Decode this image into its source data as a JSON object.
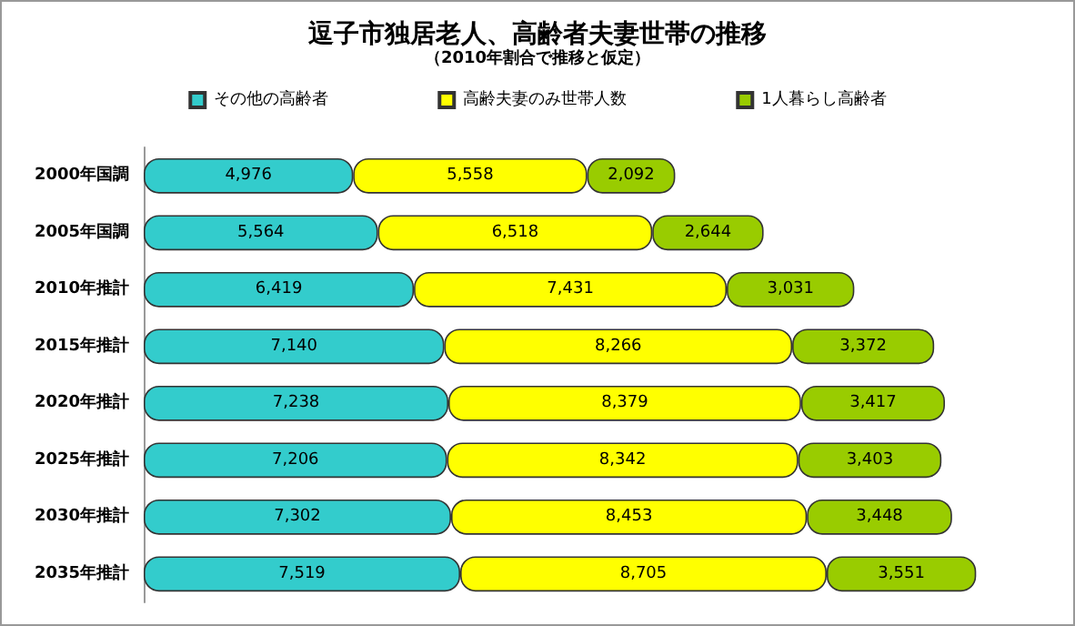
{
  "chart_data": {
    "type": "bar",
    "orientation": "horizontal",
    "stacked": true,
    "title": "逗子市独居老人、高齢者夫妻世帯の推移",
    "subtitle": "（2010年割合で推移と仮定）",
    "categories": [
      "2000年国調",
      "2005年国調",
      "2010年推計",
      "2015年推計",
      "2020年推計",
      "2025年推計",
      "2030年推計",
      "2035年推計"
    ],
    "series": [
      {
        "name": "その他の高齢者",
        "color": "#33cccc",
        "values": [
          4976,
          5564,
          6419,
          7140,
          7238,
          7206,
          7302,
          7519
        ],
        "value_labels": [
          "4,976",
          "5,564",
          "6,419",
          "7,140",
          "7,238",
          "7,206",
          "7,302",
          "7,519"
        ]
      },
      {
        "name": "高齢夫妻のみ世帯人数",
        "color": "#ffff00",
        "values": [
          5558,
          6518,
          7431,
          8266,
          8379,
          8342,
          8453,
          8705
        ],
        "value_labels": [
          "5,558",
          "6,518",
          "7,431",
          "8,266",
          "8,379",
          "8,342",
          "8,453",
          "8,705"
        ]
      },
      {
        "name": "1人暮らし高齢者",
        "color": "#99cc00",
        "values": [
          2092,
          2644,
          3031,
          3372,
          3417,
          3403,
          3448,
          3551
        ],
        "value_labels": [
          "2,092",
          "2,644",
          "3,031",
          "3,372",
          "3,417",
          "3,403",
          "3,448",
          "3,551"
        ]
      }
    ],
    "legend": "top",
    "tick_labels": "y"
  }
}
